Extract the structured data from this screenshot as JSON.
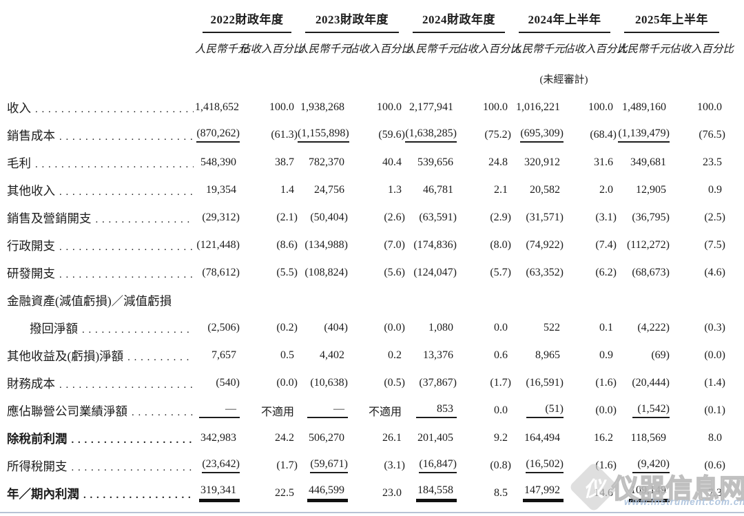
{
  "document": {
    "kind": "income-statement-table",
    "column_groups": [
      {
        "year": "2022財政年度",
        "unit": "人民幣千元",
        "pct": "佔收入百分比",
        "note": ""
      },
      {
        "year": "2023財政年度",
        "unit": "人民幣千元",
        "pct": "佔收入百分比",
        "note": ""
      },
      {
        "year": "2024財政年度",
        "unit": "人民幣千元",
        "pct": "佔收入百分比",
        "note": ""
      },
      {
        "year": "2024年上半年",
        "unit": "人民幣千元",
        "pct": "佔收入百分比",
        "note": "(未經審計)"
      },
      {
        "year": "2025年上半年",
        "unit": "人民幣千元",
        "pct": "佔收入百分比",
        "note": ""
      }
    ],
    "rows": [
      {
        "label": "收入",
        "dots": true,
        "bold": false,
        "indent": 0,
        "rule": "none",
        "values": [
          "1,418,652",
          "100.0",
          "1,938,268",
          "100.0",
          "2,177,941",
          "100.0",
          "1,016,221",
          "100.0",
          "1,489,160",
          "100.0"
        ]
      },
      {
        "label": "銷售成本",
        "dots": true,
        "bold": false,
        "indent": 0,
        "rule": "single",
        "values": [
          "(870,262)",
          "(61.3)",
          "(1,155,898)",
          "(59.6)",
          "(1,638,285)",
          "(75.2)",
          "(695,309)",
          "(68.4)",
          "(1,139,479)",
          "(76.5)"
        ]
      },
      {
        "label": "毛利",
        "dots": true,
        "bold": false,
        "indent": 0,
        "rule": "none",
        "values": [
          "548,390",
          "38.7",
          "782,370",
          "40.4",
          "539,656",
          "24.8",
          "320,912",
          "31.6",
          "349,681",
          "23.5"
        ]
      },
      {
        "label": "其他收入",
        "dots": true,
        "bold": false,
        "indent": 0,
        "rule": "none",
        "values": [
          "19,354",
          "1.4",
          "24,756",
          "1.3",
          "46,781",
          "2.1",
          "20,582",
          "2.0",
          "12,905",
          "0.9"
        ]
      },
      {
        "label": "銷售及營銷開支",
        "dots": true,
        "bold": false,
        "indent": 0,
        "rule": "none",
        "values": [
          "(29,312)",
          "(2.1)",
          "(50,404)",
          "(2.6)",
          "(63,591)",
          "(2.9)",
          "(31,571)",
          "(3.1)",
          "(36,795)",
          "(2.5)"
        ]
      },
      {
        "label": "行政開支",
        "dots": true,
        "bold": false,
        "indent": 0,
        "rule": "none",
        "values": [
          "(121,448)",
          "(8.6)",
          "(134,988)",
          "(7.0)",
          "(174,836)",
          "(8.0)",
          "(74,922)",
          "(7.4)",
          "(112,272)",
          "(7.5)"
        ]
      },
      {
        "label": "研發開支",
        "dots": true,
        "bold": false,
        "indent": 0,
        "rule": "none",
        "values": [
          "(78,612)",
          "(5.5)",
          "(108,824)",
          "(5.6)",
          "(124,047)",
          "(5.7)",
          "(63,352)",
          "(6.2)",
          "(68,673)",
          "(4.6)"
        ]
      },
      {
        "label": "金融資產(減值虧損)／減值虧損",
        "dots": false,
        "bold": false,
        "indent": 0,
        "rule": "none",
        "values": null
      },
      {
        "label": "撥回淨額",
        "dots": true,
        "bold": false,
        "indent": 33,
        "rule": "none",
        "values": [
          "(2,506)",
          "(0.2)",
          "(404)",
          "(0.0)",
          "1,080",
          "0.0",
          "522",
          "0.1",
          "(4,222)",
          "(0.3)"
        ]
      },
      {
        "label": "其他收益及(虧損)淨額",
        "dots": true,
        "bold": false,
        "indent": 0,
        "rule": "none",
        "values": [
          "7,657",
          "0.5",
          "4,402",
          "0.2",
          "13,376",
          "0.6",
          "8,965",
          "0.9",
          "(69)",
          "(0.0)"
        ]
      },
      {
        "label": "財務成本",
        "dots": true,
        "bold": false,
        "indent": 0,
        "rule": "none",
        "values": [
          "(540)",
          "(0.0)",
          "(10,638)",
          "(0.5)",
          "(37,867)",
          "(1.7)",
          "(16,591)",
          "(1.6)",
          "(20,444)",
          "(1.4)"
        ]
      },
      {
        "label": "應佔聯營公司業績淨額",
        "dots": true,
        "bold": false,
        "indent": 0,
        "rule": "single",
        "values": [
          "—",
          "不適用",
          "—",
          "不適用",
          "853",
          "0.0",
          "(51)",
          "(0.0)",
          "(1,542)",
          "(0.1)"
        ]
      },
      {
        "label": "除稅前利潤",
        "dots": true,
        "bold": true,
        "indent": 0,
        "rule": "none",
        "values": [
          "342,983",
          "24.2",
          "506,270",
          "26.1",
          "201,405",
          "9.2",
          "164,494",
          "16.2",
          "118,569",
          "8.0"
        ]
      },
      {
        "label": "所得稅開支",
        "dots": true,
        "bold": false,
        "indent": 0,
        "rule": "single",
        "values": [
          "(23,642)",
          "(1.7)",
          "(59,671)",
          "(3.1)",
          "(16,847)",
          "(0.8)",
          "(16,502)",
          "(1.6)",
          "(9,420)",
          "(0.6)"
        ]
      },
      {
        "label": "年／期內利潤",
        "dots": true,
        "bold": true,
        "indent": 0,
        "rule": "thick",
        "values": [
          "319,341",
          "22.5",
          "446,599",
          "23.0",
          "184,558",
          "8.5",
          "147,992",
          "14.6",
          "109,149",
          "7.3"
        ]
      }
    ]
  },
  "watermark": {
    "logo_glyph": "仪",
    "text": "仪器信息网",
    "url": "www.instrument.com.cn"
  },
  "colors": {
    "text": "#1c1c1c",
    "rule": "#1c1c1c",
    "bottom": "#b7c2d4",
    "wmblue": "#a9c0dc"
  }
}
